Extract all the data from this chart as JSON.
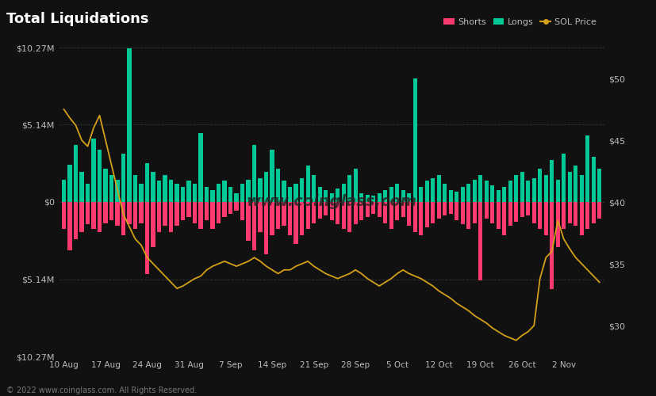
{
  "title": "Total Liquidations",
  "bg_color": "#111111",
  "grid_color": "#333333",
  "text_color": "#bbbbbb",
  "longs_color": "#00c896",
  "shorts_color": "#ff3a6e",
  "sol_color": "#d4a017",
  "ylim": [
    -10.27,
    10.27
  ],
  "ylim_right": [
    27.5,
    52.5
  ],
  "yticks_left": [
    10.27,
    5.14,
    0,
    -5.14,
    -10.27
  ],
  "ytick_labels_left": [
    "$10.27M",
    "$5.14M",
    "$0",
    "$5.14M",
    "$10.27M"
  ],
  "ytick_labels_right": [
    "$50",
    "$45",
    "$40",
    "$35",
    "$30"
  ],
  "yticks_right": [
    50,
    45,
    40,
    35,
    30
  ],
  "xlabel_dates": [
    "10 Aug",
    "17 Aug",
    "24 Aug",
    "31 Aug",
    "7 Sep",
    "14 Sep",
    "21 Sep",
    "28 Sep",
    "5 Oct",
    "12 Oct",
    "19 Oct",
    "26 Oct",
    "2 Nov"
  ],
  "footer": "© 2022 www.coinglass.com. All Rights Reserved.",
  "n_bars": 91,
  "longs": [
    1.5,
    2.5,
    3.8,
    2.0,
    1.2,
    4.2,
    3.5,
    2.2,
    1.8,
    1.5,
    3.2,
    10.2,
    1.8,
    1.2,
    2.6,
    2.0,
    1.4,
    1.8,
    1.5,
    1.2,
    1.0,
    1.4,
    1.2,
    4.6,
    1.0,
    0.8,
    1.2,
    1.4,
    1.0,
    0.6,
    1.2,
    1.5,
    3.8,
    1.6,
    2.0,
    3.5,
    2.2,
    1.4,
    1.0,
    1.2,
    1.6,
    2.4,
    1.8,
    1.0,
    0.8,
    0.6,
    0.9,
    1.2,
    1.8,
    2.2,
    0.6,
    0.5,
    0.4,
    0.6,
    0.8,
    1.0,
    1.2,
    0.8,
    0.6,
    8.2,
    1.0,
    1.4,
    1.6,
    1.8,
    1.2,
    0.8,
    0.7,
    1.0,
    1.2,
    1.5,
    1.8,
    1.4,
    1.1,
    0.8,
    1.0,
    1.4,
    1.8,
    2.0,
    1.4,
    1.6,
    2.2,
    1.8,
    2.8,
    1.5,
    3.2,
    2.0,
    2.4,
    1.8,
    4.4,
    3.0,
    2.2
  ],
  "shorts": [
    -1.8,
    -3.2,
    -2.5,
    -2.0,
    -1.5,
    -1.8,
    -2.0,
    -1.4,
    -1.2,
    -1.6,
    -2.2,
    -1.5,
    -1.8,
    -1.4,
    -4.8,
    -3.0,
    -2.0,
    -1.6,
    -2.0,
    -1.6,
    -1.2,
    -1.0,
    -1.4,
    -1.8,
    -1.2,
    -1.8,
    -1.4,
    -1.0,
    -0.8,
    -0.6,
    -1.2,
    -2.6,
    -3.2,
    -2.0,
    -3.5,
    -2.2,
    -1.8,
    -1.6,
    -2.2,
    -2.8,
    -2.2,
    -1.8,
    -1.4,
    -1.1,
    -0.9,
    -1.2,
    -1.5,
    -1.8,
    -2.0,
    -1.5,
    -1.2,
    -1.0,
    -0.8,
    -1.0,
    -1.4,
    -1.8,
    -1.2,
    -1.0,
    -1.6,
    -2.0,
    -2.2,
    -1.7,
    -1.4,
    -1.1,
    -0.9,
    -0.8,
    -1.2,
    -1.5,
    -1.8,
    -1.4,
    -5.2,
    -1.1,
    -1.4,
    -1.8,
    -2.2,
    -1.6,
    -1.3,
    -1.0,
    -0.9,
    -1.4,
    -1.8,
    -2.2,
    -5.8,
    -3.0,
    -1.8,
    -1.4,
    -1.6,
    -2.2,
    -1.8,
    -1.4,
    -1.1
  ],
  "sol_price": [
    47.5,
    46.8,
    46.2,
    45.0,
    44.5,
    46.0,
    47.0,
    45.0,
    43.0,
    41.0,
    39.0,
    38.0,
    37.0,
    36.5,
    35.5,
    35.0,
    34.5,
    34.0,
    33.5,
    33.0,
    33.2,
    33.5,
    33.8,
    34.0,
    34.5,
    34.8,
    35.0,
    35.2,
    35.0,
    34.8,
    35.0,
    35.2,
    35.5,
    35.2,
    34.8,
    34.5,
    34.2,
    34.5,
    34.5,
    34.8,
    35.0,
    35.2,
    34.8,
    34.5,
    34.2,
    34.0,
    33.8,
    34.0,
    34.2,
    34.5,
    34.2,
    33.8,
    33.5,
    33.2,
    33.5,
    33.8,
    34.2,
    34.5,
    34.2,
    34.0,
    33.8,
    33.5,
    33.2,
    32.8,
    32.5,
    32.2,
    31.8,
    31.5,
    31.2,
    30.8,
    30.5,
    30.2,
    29.8,
    29.5,
    29.2,
    29.0,
    28.8,
    29.2,
    29.5,
    30.0,
    33.8,
    35.5,
    36.0,
    38.5,
    37.0,
    36.2,
    35.5,
    35.0,
    34.5,
    34.0,
    33.5
  ]
}
